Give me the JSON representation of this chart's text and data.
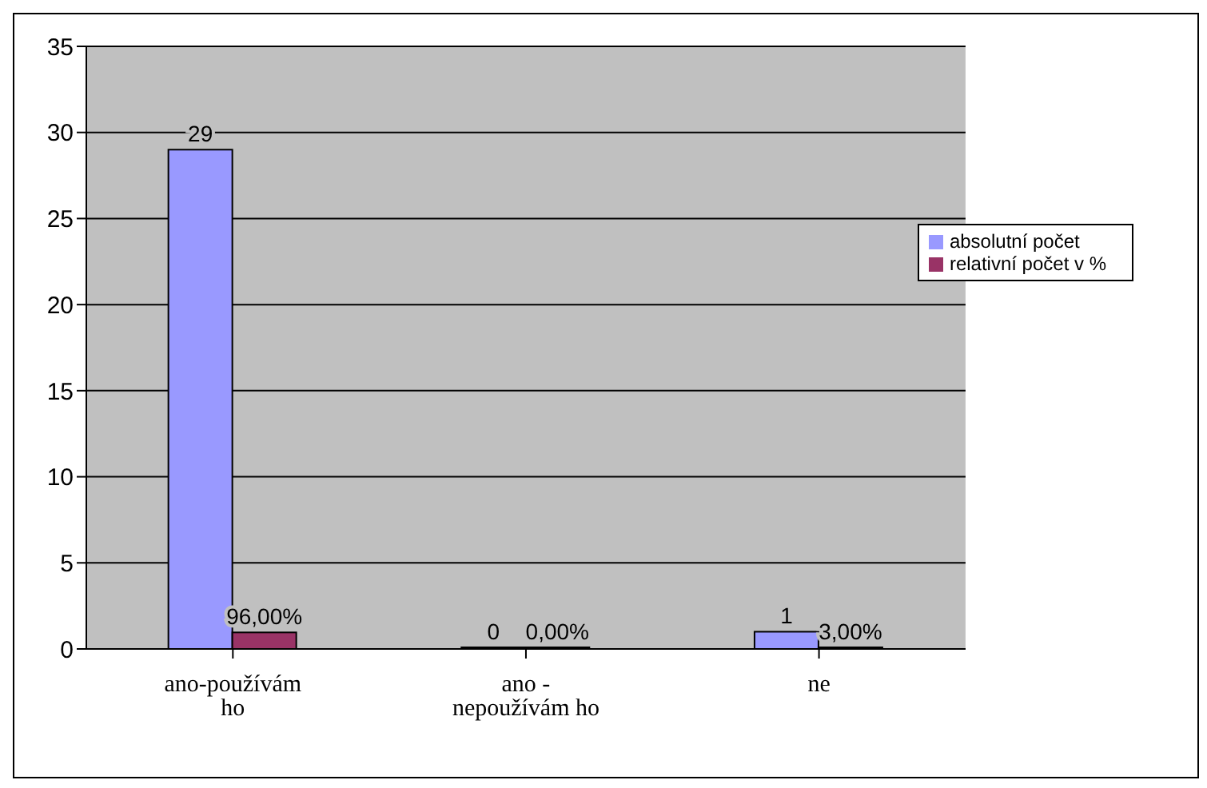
{
  "chart_data": {
    "type": "bar",
    "categories": [
      "ano-používám ho",
      "ano - nepoužívám ho",
      "ne"
    ],
    "series": [
      {
        "name": "absolutní počet",
        "color": "#9999ff",
        "values": [
          29,
          0,
          1
        ],
        "value_labels": [
          "29",
          "0",
          "1"
        ]
      },
      {
        "name": "relativní počet v %",
        "color": "#993366",
        "values": [
          0.96,
          0,
          0.03
        ],
        "value_labels": [
          "96,00%",
          "0,00%",
          "3,00%"
        ]
      }
    ],
    "ylim": [
      0,
      35
    ],
    "yticks": [
      0,
      5,
      10,
      15,
      20,
      25,
      30,
      35
    ],
    "grid": "y",
    "legend": "right"
  }
}
